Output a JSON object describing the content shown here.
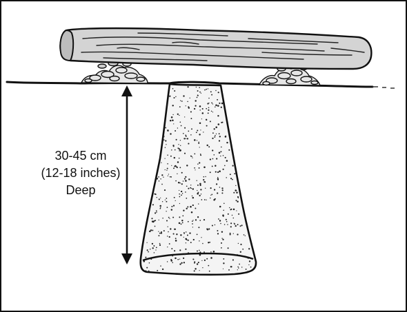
{
  "depth_label": {
    "line1": "30-45 cm",
    "line2": "(12-18 inches)",
    "line3": "Deep"
  },
  "colors": {
    "ink": "#111111",
    "log_fill": "#d2d2d2",
    "pit_fill": "#f2f2f2",
    "stone_fill": "#e4e4e4",
    "background": "#ffffff"
  }
}
